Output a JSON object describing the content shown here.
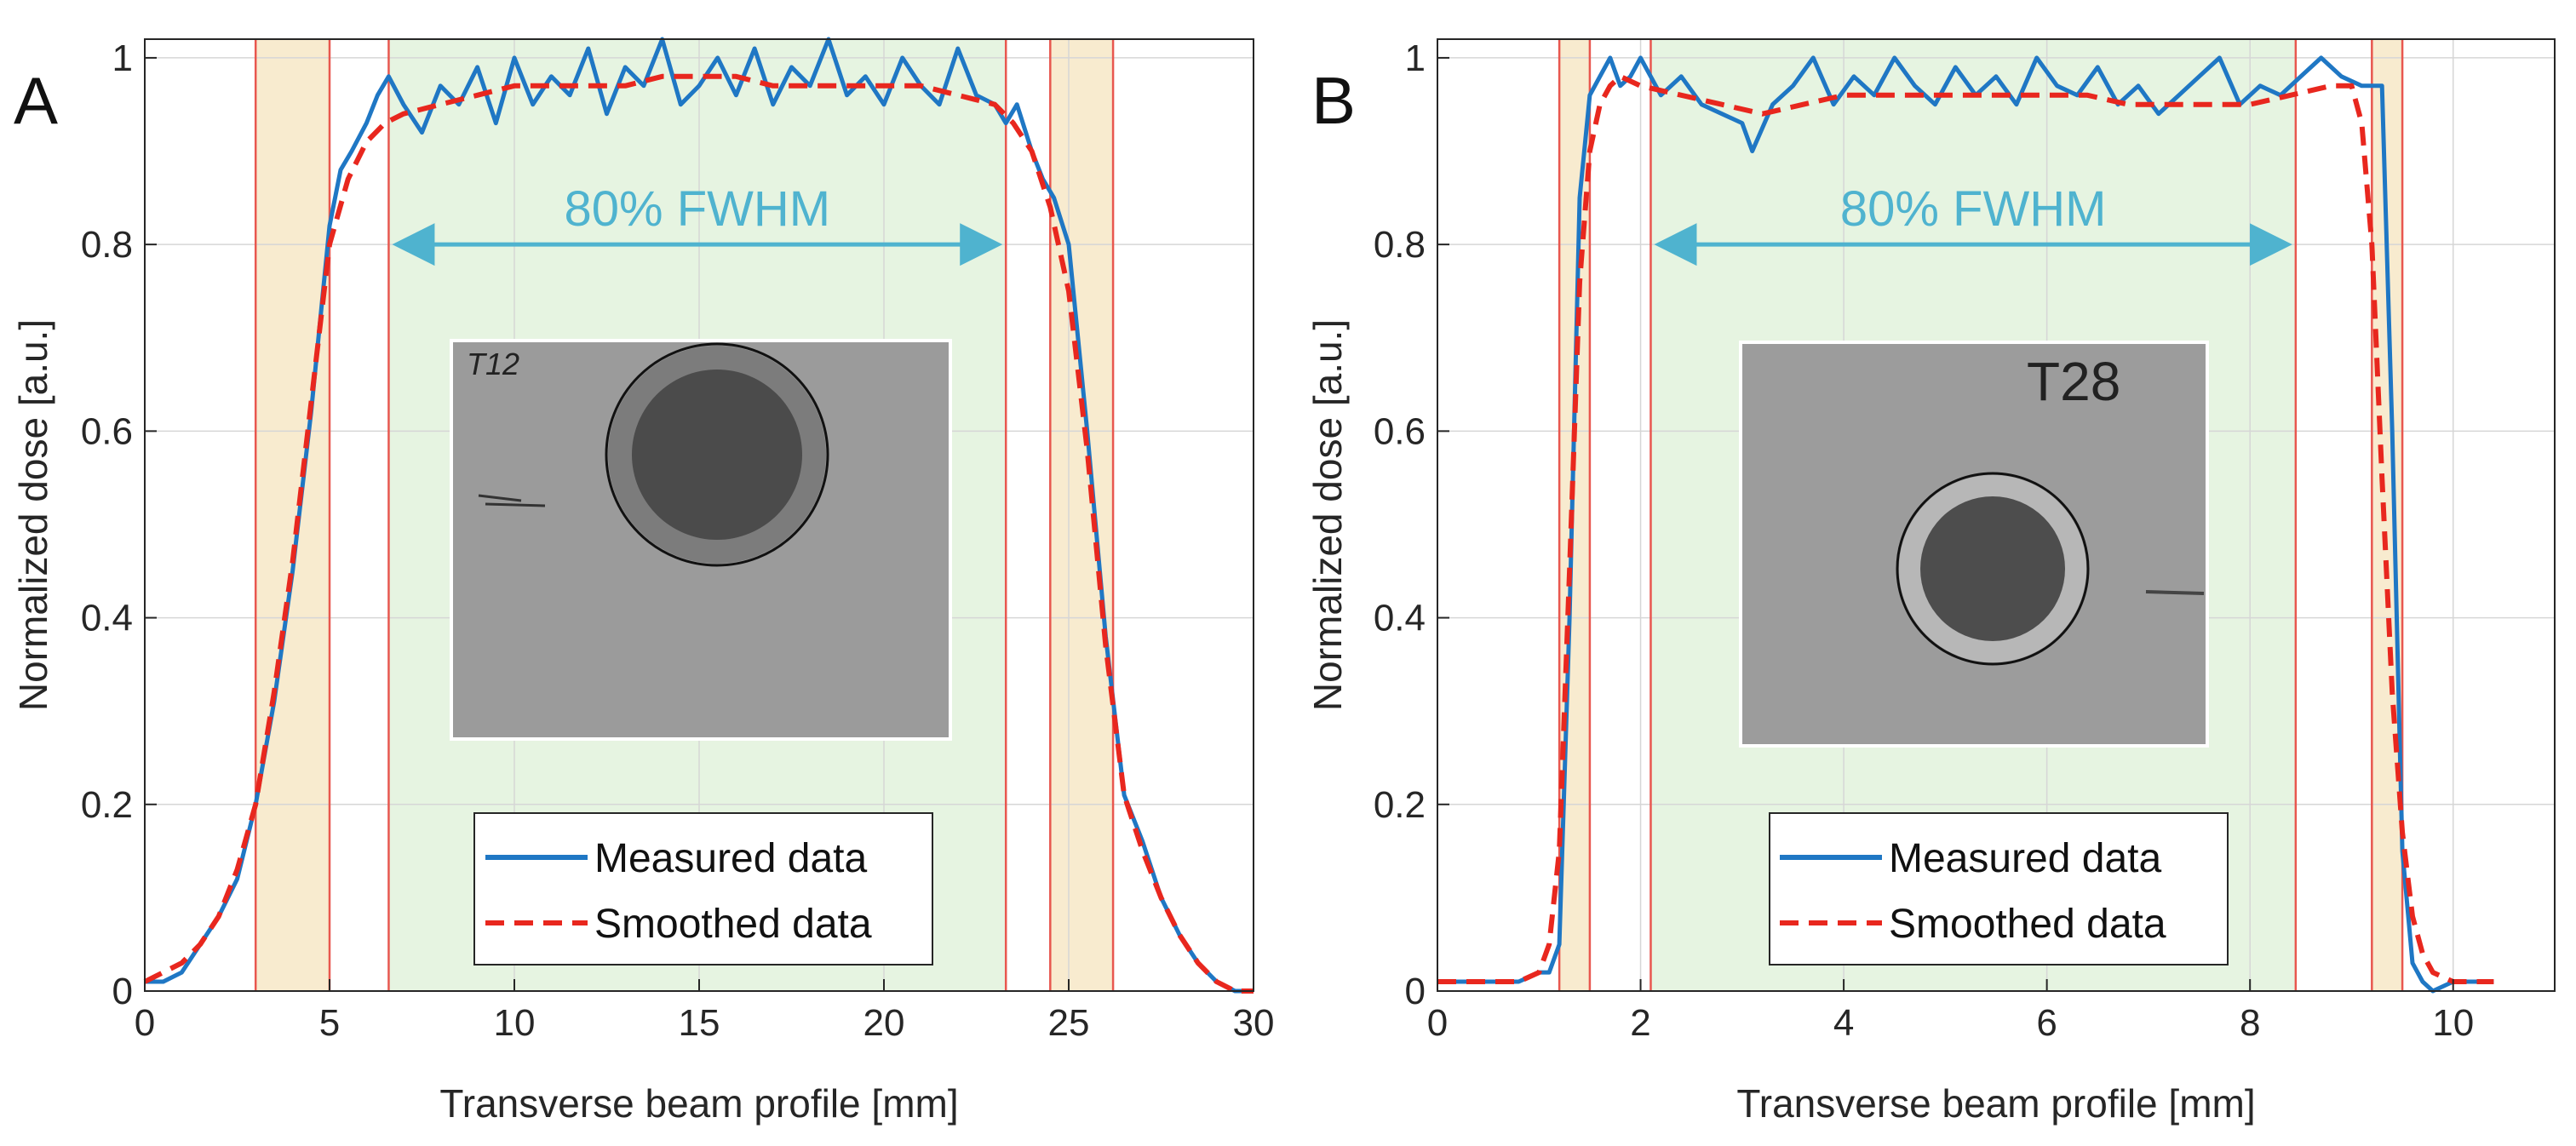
{
  "chart_data": [
    {
      "type": "line",
      "panel_label": "A",
      "xlabel": "Transverse beam profile [mm]",
      "ylabel": "Normalized dose [a.u.]",
      "xlim": [
        0,
        30
      ],
      "ylim": [
        0,
        1.02
      ],
      "grid": true,
      "xticks": [
        0,
        5,
        10,
        15,
        20,
        25,
        30
      ],
      "xtick_labels": [
        "0",
        "5",
        "10",
        "15",
        "20",
        "25",
        "30"
      ],
      "yticks": [
        0,
        0.2,
        0.4,
        0.6,
        0.8,
        1
      ],
      "ytick_labels": [
        "0",
        "0.2",
        "0.4",
        "0.6",
        "0.8",
        "1"
      ],
      "penumbra_bands": [
        [
          3.0,
          5.0
        ],
        [
          24.5,
          26.2
        ]
      ],
      "fwhm_band": [
        6.6,
        23.3
      ],
      "annotation": "80% FWHM",
      "legend": {
        "position": "bottom-center",
        "entries": [
          "Measured data",
          "Smoothed data"
        ]
      },
      "inset_label": "T12",
      "series": [
        {
          "name": "Measured data",
          "style": "solid",
          "color": "#1f77c4",
          "x": [
            0,
            0.5,
            1,
            1.5,
            2,
            2.5,
            3,
            3.5,
            4,
            4.5,
            5,
            5.3,
            5.6,
            6,
            6.3,
            6.6,
            7,
            7.5,
            8,
            8.5,
            9,
            9.5,
            10,
            10.5,
            11,
            11.5,
            12,
            12.5,
            13,
            13.5,
            14,
            14.5,
            15,
            15.5,
            16,
            16.5,
            17,
            17.5,
            18,
            18.5,
            19,
            19.5,
            20,
            20.5,
            21,
            21.5,
            22,
            22.5,
            23,
            23.3,
            23.6,
            24,
            24.3,
            24.6,
            25,
            25.5,
            26,
            26.5,
            27,
            27.5,
            28,
            28.5,
            29,
            29.5,
            30
          ],
          "y": [
            0.01,
            0.01,
            0.02,
            0.05,
            0.08,
            0.12,
            0.2,
            0.31,
            0.45,
            0.62,
            0.82,
            0.88,
            0.9,
            0.93,
            0.96,
            0.98,
            0.95,
            0.92,
            0.97,
            0.95,
            0.99,
            0.93,
            1.0,
            0.95,
            0.98,
            0.96,
            1.01,
            0.94,
            0.99,
            0.97,
            1.02,
            0.95,
            0.97,
            1.0,
            0.96,
            1.01,
            0.95,
            0.99,
            0.97,
            1.02,
            0.96,
            0.98,
            0.95,
            1.0,
            0.97,
            0.95,
            1.01,
            0.96,
            0.95,
            0.93,
            0.95,
            0.9,
            0.87,
            0.85,
            0.8,
            0.6,
            0.38,
            0.21,
            0.16,
            0.1,
            0.06,
            0.03,
            0.01,
            0.0,
            0.0
          ]
        },
        {
          "name": "Smoothed data",
          "style": "dashed",
          "color": "#e8271e",
          "x": [
            0,
            0.5,
            1,
            1.5,
            2,
            2.5,
            3,
            3.5,
            4,
            4.5,
            5,
            5.5,
            6,
            6.5,
            7,
            8,
            9,
            10,
            11,
            12,
            13,
            14,
            15,
            16,
            17,
            18,
            19,
            20,
            21,
            22,
            23,
            23.5,
            24,
            24.5,
            25,
            25.5,
            26,
            26.5,
            27,
            27.5,
            28,
            28.5,
            29,
            29.5,
            30
          ],
          "y": [
            0.01,
            0.02,
            0.03,
            0.05,
            0.08,
            0.13,
            0.2,
            0.32,
            0.46,
            0.63,
            0.8,
            0.87,
            0.91,
            0.93,
            0.94,
            0.95,
            0.96,
            0.97,
            0.97,
            0.97,
            0.97,
            0.98,
            0.98,
            0.98,
            0.97,
            0.97,
            0.97,
            0.97,
            0.97,
            0.96,
            0.95,
            0.93,
            0.9,
            0.84,
            0.75,
            0.58,
            0.37,
            0.21,
            0.15,
            0.1,
            0.06,
            0.03,
            0.01,
            0.0,
            0.0
          ]
        }
      ]
    },
    {
      "type": "line",
      "panel_label": "B",
      "xlabel": "Transverse beam profile [mm]",
      "ylabel": "Normalized dose [a.u.]",
      "xlim": [
        0,
        11
      ],
      "ylim": [
        0,
        1.02
      ],
      "grid": true,
      "xticks": [
        0,
        2,
        4,
        6,
        8,
        10
      ],
      "xtick_labels": [
        "0",
        "2",
        "4",
        "6",
        "8",
        "10"
      ],
      "yticks": [
        0,
        0.2,
        0.4,
        0.6,
        0.8,
        1
      ],
      "ytick_labels": [
        "0",
        "0.2",
        "0.4",
        "0.6",
        "0.8",
        "1"
      ],
      "penumbra_bands": [
        [
          1.2,
          1.5
        ],
        [
          9.2,
          9.5
        ]
      ],
      "fwhm_band": [
        2.1,
        8.45
      ],
      "annotation": "80% FWHM",
      "legend": {
        "position": "bottom-center",
        "entries": [
          "Measured data",
          "Smoothed data"
        ]
      },
      "inset_label": "T28",
      "series": [
        {
          "name": "Measured data",
          "style": "solid",
          "color": "#1f77c4",
          "x": [
            0,
            0.2,
            0.4,
            0.6,
            0.8,
            1.0,
            1.1,
            1.2,
            1.3,
            1.4,
            1.5,
            1.6,
            1.7,
            1.8,
            1.9,
            2.0,
            2.2,
            2.4,
            2.6,
            2.8,
            3.0,
            3.1,
            3.3,
            3.5,
            3.7,
            3.9,
            4.1,
            4.3,
            4.5,
            4.7,
            4.9,
            5.1,
            5.3,
            5.5,
            5.7,
            5.9,
            6.1,
            6.3,
            6.5,
            6.7,
            6.9,
            7.1,
            7.3,
            7.5,
            7.7,
            7.9,
            8.1,
            8.3,
            8.5,
            8.7,
            8.9,
            9.1,
            9.3,
            9.4,
            9.5,
            9.6,
            9.7,
            9.8,
            10.0,
            10.2,
            10.4
          ],
          "y": [
            0.01,
            0.01,
            0.01,
            0.01,
            0.01,
            0.02,
            0.02,
            0.05,
            0.4,
            0.85,
            0.96,
            0.98,
            1.0,
            0.97,
            0.98,
            1.0,
            0.96,
            0.98,
            0.95,
            0.94,
            0.93,
            0.9,
            0.95,
            0.97,
            1.0,
            0.95,
            0.98,
            0.96,
            1.0,
            0.97,
            0.95,
            0.99,
            0.96,
            0.98,
            0.95,
            1.0,
            0.97,
            0.96,
            0.99,
            0.95,
            0.97,
            0.94,
            0.96,
            0.98,
            1.0,
            0.95,
            0.97,
            0.96,
            0.98,
            1.0,
            0.98,
            0.97,
            0.97,
            0.6,
            0.15,
            0.03,
            0.01,
            0.0,
            0.01,
            0.01,
            0.01
          ]
        },
        {
          "name": "Smoothed data",
          "style": "dashed",
          "color": "#e8271e",
          "x": [
            0,
            0.4,
            0.8,
            1.0,
            1.1,
            1.2,
            1.3,
            1.4,
            1.5,
            1.6,
            1.7,
            1.8,
            2.0,
            2.4,
            2.8,
            3.2,
            3.6,
            4.0,
            4.4,
            4.8,
            5.2,
            5.6,
            6.0,
            6.4,
            6.8,
            7.2,
            7.6,
            8.0,
            8.4,
            8.8,
            9.0,
            9.1,
            9.2,
            9.3,
            9.4,
            9.5,
            9.6,
            9.7,
            9.8,
            10.0,
            10.4
          ],
          "y": [
            0.01,
            0.01,
            0.01,
            0.02,
            0.05,
            0.15,
            0.45,
            0.76,
            0.9,
            0.95,
            0.97,
            0.98,
            0.97,
            0.96,
            0.95,
            0.94,
            0.95,
            0.96,
            0.96,
            0.96,
            0.96,
            0.96,
            0.96,
            0.96,
            0.95,
            0.95,
            0.95,
            0.95,
            0.96,
            0.97,
            0.97,
            0.93,
            0.8,
            0.55,
            0.32,
            0.17,
            0.08,
            0.04,
            0.02,
            0.01,
            0.01
          ]
        }
      ]
    }
  ]
}
